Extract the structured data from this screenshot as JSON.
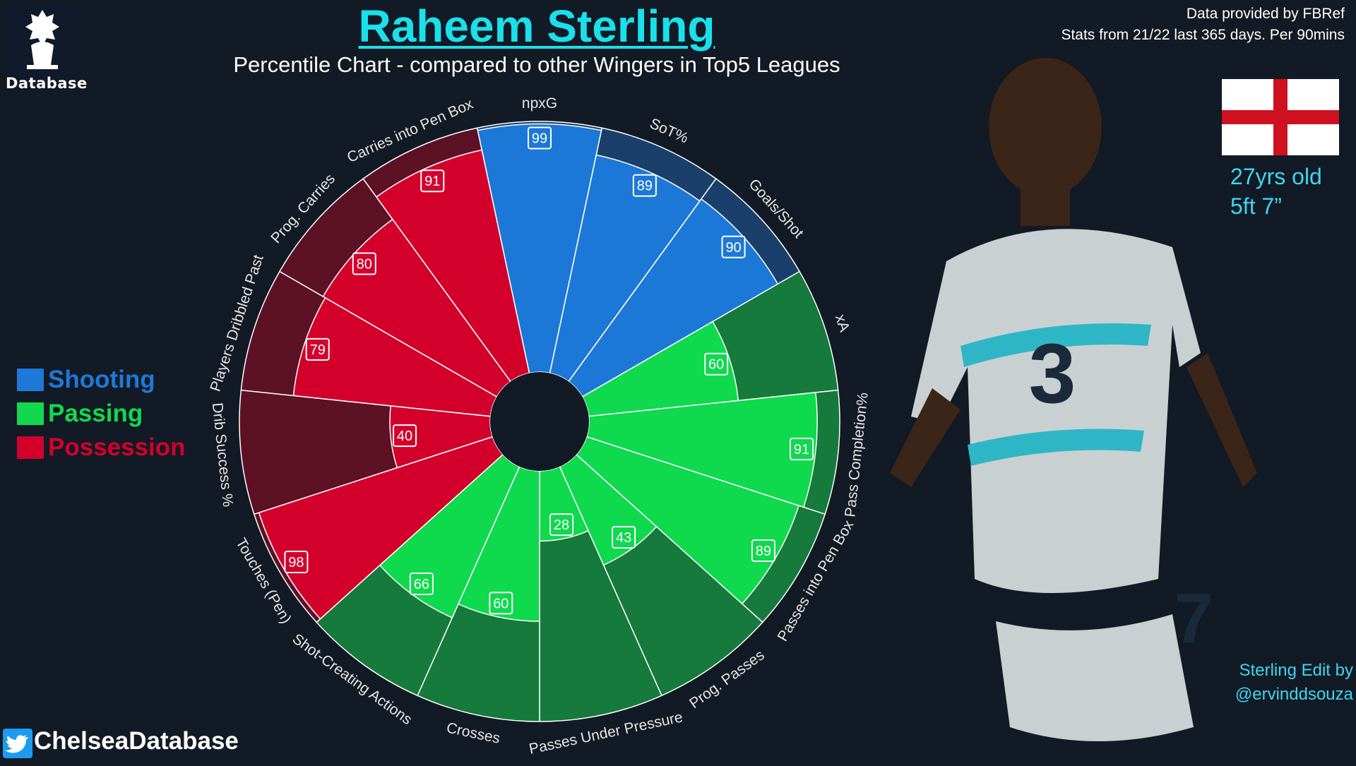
{
  "header": {
    "title": "Raheem Sterling",
    "subtitle": "Percentile Chart - compared to other Wingers in Top5 Leagues",
    "credit_line1": "Data provided by FBRef",
    "credit_line2": "Stats from 21/22 last 365 days. Per 90mins"
  },
  "logo": {
    "text": "Database",
    "icon": "lion-crest-icon"
  },
  "player": {
    "age": "27yrs old",
    "height": "5ft 7”"
  },
  "footer": {
    "handle": "ChelseaDatabase",
    "edit_line1": "Sterling Edit by",
    "edit_line2": "@ervinddsouza"
  },
  "legend": [
    {
      "label": "Shooting",
      "color": "#1e78d8"
    },
    {
      "label": "Passing",
      "color": "#12d84e"
    },
    {
      "label": "Possession",
      "color": "#d4002c"
    }
  ],
  "colors": {
    "shooting": "#1c78d6",
    "shooting_bg": "#1a3f6b",
    "passing": "#0fd94d",
    "passing_bg": "#157a3b",
    "possession": "#d3002c",
    "possession_bg": "#5d1125"
  },
  "chart_data": {
    "type": "pie",
    "subtype": "radial percentile (pizza) chart",
    "scale": [
      0,
      100
    ],
    "categories": [
      "npxG",
      "SoT%",
      "Goals/Shot",
      "xA",
      "Pass Completion%",
      "Passes into Pen Box",
      "Prog. Passes",
      "Passes Under Pressure",
      "Crosses",
      "Shot-Creating Actions",
      "Touches (Pen)",
      "Drib Success %",
      "Players Dribbled Past",
      "Prog. Carries",
      "Carries into Pen Box"
    ],
    "groups": [
      "shooting",
      "shooting",
      "shooting",
      "passing",
      "passing",
      "passing",
      "passing",
      "passing",
      "passing",
      "passing",
      "possession",
      "possession",
      "possession",
      "possession",
      "possession"
    ],
    "values": [
      99,
      89,
      90,
      60,
      91,
      89,
      43,
      28,
      60,
      66,
      98,
      40,
      79,
      80,
      91
    ]
  }
}
